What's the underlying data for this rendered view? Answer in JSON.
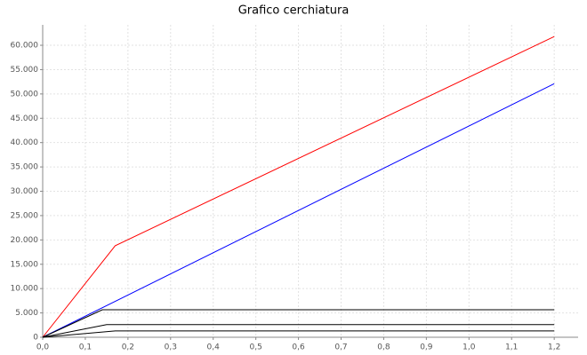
{
  "chart_data": {
    "type": "line",
    "title": "Grafico cerchiatura",
    "series": [
      {
        "color": "#ff0000",
        "x": [
          0,
          0.17,
          1.2
        ],
        "values": [
          0,
          18800,
          61800
        ]
      },
      {
        "color": "#0000ff",
        "x": [
          0,
          1.2
        ],
        "values": [
          0,
          52100
        ]
      },
      {
        "color": "#000000",
        "x": [
          0,
          0.14,
          1.2
        ],
        "values": [
          0,
          5650,
          5650
        ]
      },
      {
        "color": "#000000",
        "x": [
          0,
          0.15,
          1.2
        ],
        "values": [
          0,
          2600,
          2600
        ]
      },
      {
        "color": "#000000",
        "x": [
          0,
          0.17,
          1.2
        ],
        "values": [
          0,
          1300,
          1300
        ]
      }
    ],
    "xlim": [
      0,
      1.256
    ],
    "ylim": [
      0,
      64200
    ],
    "xticks": [
      {
        "value": 0,
        "label": "0,0"
      },
      {
        "value": 0.1,
        "label": "0,1"
      },
      {
        "value": 0.2,
        "label": "0,2"
      },
      {
        "value": 0.3,
        "label": "0,3"
      },
      {
        "value": 0.4,
        "label": "0,4"
      },
      {
        "value": 0.5,
        "label": "0,5"
      },
      {
        "value": 0.6,
        "label": "0,6"
      },
      {
        "value": 0.7,
        "label": "0,7"
      },
      {
        "value": 0.8,
        "label": "0,8"
      },
      {
        "value": 0.9,
        "label": "0,9"
      },
      {
        "value": 1.0,
        "label": "1,0"
      },
      {
        "value": 1.1,
        "label": "1,1"
      },
      {
        "value": 1.2,
        "label": "1,2"
      }
    ],
    "yticks": [
      0,
      {
        "value": 5000,
        "label": "5.000"
      },
      {
        "value": 10000,
        "label": "10.000"
      },
      {
        "value": 15000,
        "label": "15.000"
      },
      {
        "value": 20000,
        "label": "20.000"
      },
      {
        "value": 25000,
        "label": "25.000"
      },
      {
        "value": 30000,
        "label": "30.000"
      },
      {
        "value": 35000,
        "label": "35.000"
      },
      {
        "value": 40000,
        "label": "40.000"
      },
      {
        "value": 45000,
        "label": "45.000"
      },
      {
        "value": 50000,
        "label": "50.000"
      },
      {
        "value": 55000,
        "label": "55.000"
      },
      {
        "value": 60000,
        "label": "60.000"
      }
    ],
    "grid": true
  }
}
